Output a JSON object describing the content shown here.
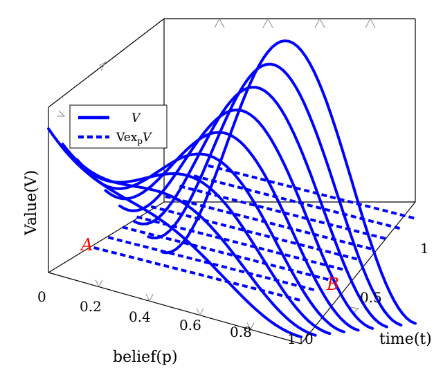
{
  "chart_data": {
    "type": "line",
    "view": "3d-surface-slices",
    "axes": {
      "x": {
        "label": "belief(p)",
        "range": [
          0,
          1
        ],
        "ticks": [
          "0",
          "0.2",
          "0.4",
          "0.6",
          "0.8",
          "1"
        ]
      },
      "t": {
        "label": "time(t)",
        "range": [
          0,
          1
        ],
        "ticks": [
          "0",
          "0.5",
          "1"
        ]
      },
      "y": {
        "label": "Value(V)"
      }
    },
    "legend": {
      "placement": "top-left",
      "entries": [
        {
          "label": "V",
          "style": "solid"
        },
        {
          "label": "Vex",
          "subscript": "p",
          "suffix": "V",
          "style": "dashed"
        }
      ]
    },
    "annotations": [
      {
        "text": "A",
        "color": "#ff0000"
      },
      {
        "text": "B",
        "color": "#ff0000"
      }
    ],
    "series": [
      {
        "name": "V",
        "style": "solid",
        "t_values": [
          0,
          0.125,
          0.25,
          0.375,
          0.5,
          0.625,
          0.75,
          0.875,
          1
        ]
      },
      {
        "name": "Vex_p V",
        "style": "dashed",
        "t_values": [
          0,
          0.125,
          0.25,
          0.375,
          0.5,
          0.625,
          0.75,
          0.875,
          1
        ]
      }
    ],
    "color": "#0000ff",
    "grid": false
  }
}
